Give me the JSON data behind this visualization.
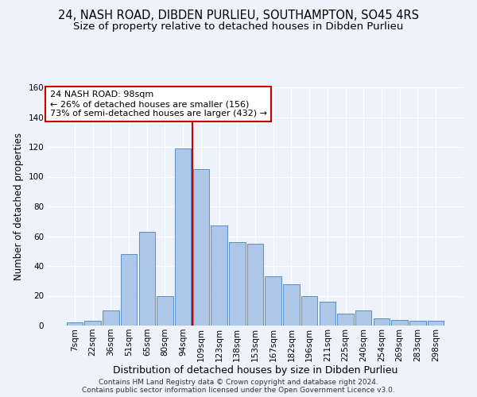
{
  "title": "24, NASH ROAD, DIBDEN PURLIEU, SOUTHAMPTON, SO45 4RS",
  "subtitle": "Size of property relative to detached houses in Dibden Purlieu",
  "xlabel": "Distribution of detached houses by size in Dibden Purlieu",
  "ylabel": "Number of detached properties",
  "bar_labels": [
    "7sqm",
    "22sqm",
    "36sqm",
    "51sqm",
    "65sqm",
    "80sqm",
    "94sqm",
    "109sqm",
    "123sqm",
    "138sqm",
    "153sqm",
    "167sqm",
    "182sqm",
    "196sqm",
    "211sqm",
    "225sqm",
    "240sqm",
    "254sqm",
    "269sqm",
    "283sqm",
    "298sqm"
  ],
  "bar_heights": [
    2,
    3,
    10,
    48,
    63,
    20,
    119,
    105,
    67,
    56,
    55,
    33,
    28,
    20,
    16,
    8,
    10,
    5,
    4,
    3,
    3
  ],
  "bar_color": "#aec6e8",
  "bar_edge_color": "#5a8fc2",
  "ylim": [
    0,
    160
  ],
  "yticks": [
    0,
    20,
    40,
    60,
    80,
    100,
    120,
    140,
    160
  ],
  "property_label": "24 NASH ROAD: 98sqm",
  "annotation_line1": "← 26% of detached houses are smaller (156)",
  "annotation_line2": "73% of semi-detached houses are larger (432) →",
  "vline_color": "#cc0000",
  "annotation_box_color": "#ffffff",
  "annotation_box_edge": "#cc0000",
  "footnote1": "Contains HM Land Registry data © Crown copyright and database right 2024.",
  "footnote2": "Contains public sector information licensed under the Open Government Licence v3.0.",
  "background_color": "#eef2fb",
  "grid_color": "#ffffff",
  "title_fontsize": 10.5,
  "subtitle_fontsize": 9.5,
  "ylabel_fontsize": 8.5,
  "xlabel_fontsize": 9,
  "annotation_fontsize": 8,
  "tick_fontsize": 7.5,
  "footnote_fontsize": 6.5
}
